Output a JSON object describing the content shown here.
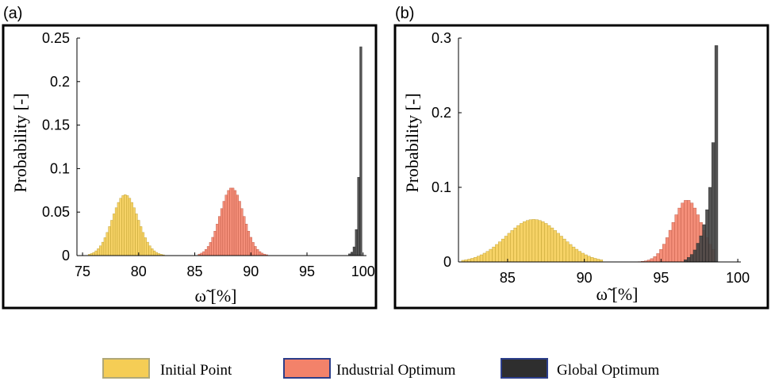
{
  "chart_data": [
    {
      "panel": "(a)",
      "type": "bar",
      "subtype": "histogram",
      "xlabel": "ω̃ [%]",
      "ylabel": "Probability [-]",
      "xlim": [
        74.5,
        100.3
      ],
      "ylim": [
        0,
        0.25
      ],
      "xticks": [
        75,
        80,
        85,
        90,
        95,
        100
      ],
      "yticks": [
        0,
        0.05,
        0.1,
        0.15,
        0.2,
        0.25
      ],
      "ytick_labels": [
        "0",
        "0.05",
        "0.1",
        "0.15",
        "0.2",
        "0.25"
      ],
      "bin_width": 0.2,
      "series": [
        {
          "name": "Initial Point",
          "mean": 78.8,
          "std": 1.15,
          "peak": 0.07,
          "range": [
            75.6,
            82.2
          ],
          "color": "#f5cd55"
        },
        {
          "name": "Industrial Optimum",
          "mean": 88.3,
          "std": 1.05,
          "peak": 0.078,
          "range": [
            85.4,
            91.4
          ],
          "color": "#f3826a"
        },
        {
          "name": "Global Optimum",
          "x": [
            98.8,
            99.0,
            99.2,
            99.4,
            99.6,
            99.8
          ],
          "values": [
            0.002,
            0.004,
            0.01,
            0.03,
            0.09,
            0.24
          ],
          "color": "#454545"
        }
      ]
    },
    {
      "panel": "(b)",
      "type": "bar",
      "subtype": "histogram",
      "xlabel": "ω̃ [%]",
      "ylabel": "Probability [-]",
      "xlim": [
        81.8,
        100.2
      ],
      "ylim": [
        0,
        0.3
      ],
      "xticks": [
        85,
        90,
        95,
        100
      ],
      "yticks": [
        0,
        0.1,
        0.2,
        0.3
      ],
      "ytick_labels": [
        "0",
        "0.1",
        "0.2",
        "0.3"
      ],
      "bin_width": 0.2,
      "series": [
        {
          "name": "Initial Point",
          "mean": 86.7,
          "std": 1.8,
          "peak": 0.057,
          "range": [
            82.1,
            91.2
          ],
          "color": "#f5cd55"
        },
        {
          "name": "Industrial Optimum",
          "mean": 96.7,
          "std": 0.95,
          "peak": 0.083,
          "range": [
            93.4,
            98.5
          ],
          "color": "#f3826a"
        },
        {
          "name": "Global Optimum",
          "x": [
            96.6,
            96.8,
            97.0,
            97.2,
            97.4,
            97.6,
            97.8,
            98.0,
            98.2,
            98.4,
            98.6
          ],
          "values": [
            0.003,
            0.006,
            0.01,
            0.016,
            0.025,
            0.035,
            0.05,
            0.07,
            0.1,
            0.16,
            0.29
          ],
          "color": "#454545"
        }
      ]
    }
  ],
  "legend": {
    "items": [
      {
        "label": "Initial Point",
        "color": "#f5cd55",
        "border": "#b0a878"
      },
      {
        "label": "Industrial Optimum",
        "color": "#f3826a",
        "border": "#2c3e8a"
      },
      {
        "label": "Global Optimum",
        "color": "#2e2e2e",
        "border": "#2c3e8a"
      }
    ]
  }
}
